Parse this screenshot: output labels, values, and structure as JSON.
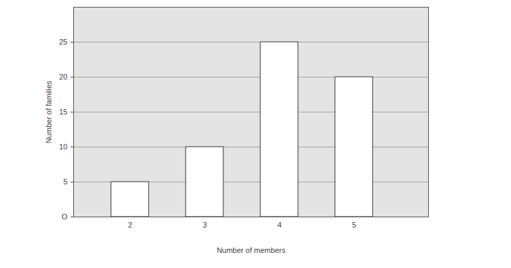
{
  "chart_data": {
    "type": "bar",
    "x_label": "Number of members",
    "y_label": "Number of families",
    "categories": [
      "2",
      "3",
      "4",
      "5"
    ],
    "values": [
      5,
      10,
      25,
      20
    ],
    "color": "#ffffff",
    "ylim": [
      0,
      30
    ],
    "yticks": [
      {
        "value": 0,
        "label": "O"
      },
      5,
      10,
      15,
      20,
      25
    ],
    "grid": true
  }
}
